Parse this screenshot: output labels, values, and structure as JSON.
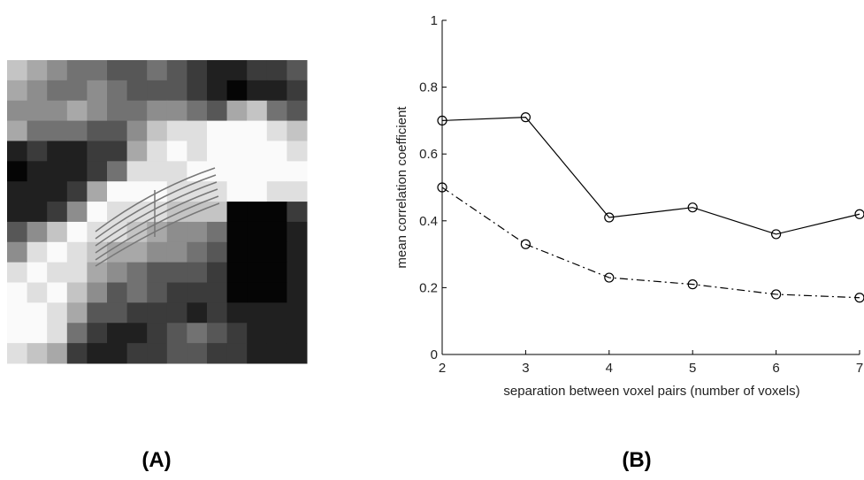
{
  "panels": {
    "a_label": "(A)",
    "b_label": "(B)"
  },
  "chart_data": {
    "type": "line",
    "xlabel": "separation between voxel pairs (number of voxels)",
    "ylabel": "mean correlation coefficient",
    "x": [
      2,
      3,
      4,
      5,
      6,
      7
    ],
    "series": [
      {
        "color": "#000000",
        "linestyle": "solid",
        "values": [
          0.7,
          0.71,
          0.41,
          0.44,
          0.36,
          0.42
        ]
      },
      {
        "color": "#000000",
        "linestyle": "dashdot",
        "values": [
          0.5,
          0.33,
          0.23,
          0.21,
          0.18,
          0.17
        ]
      }
    ],
    "xlim": [
      2,
      7
    ],
    "xticks": [
      2,
      3,
      4,
      5,
      6,
      7
    ],
    "ylim": [
      0,
      1
    ],
    "yticks": [
      0,
      0.2,
      0.4,
      0.6,
      0.8,
      1
    ],
    "marker": "circle",
    "grid": false
  }
}
